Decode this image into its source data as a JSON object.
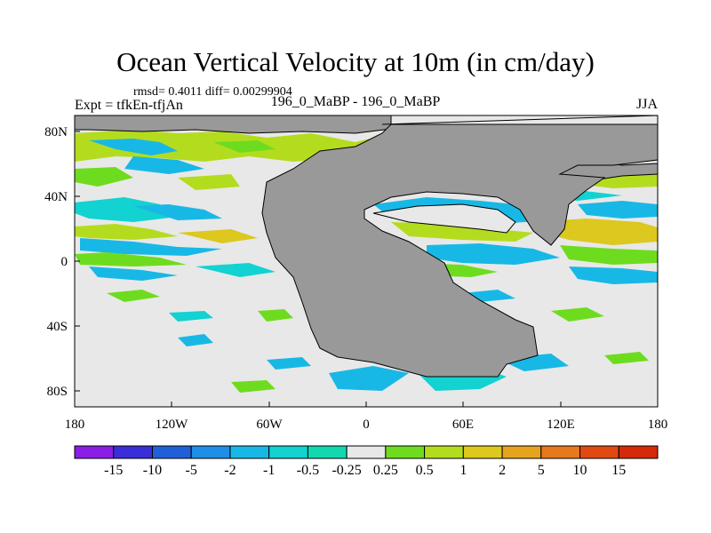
{
  "title": "Ocean Vertical Velocity at 10m (in cm/day)",
  "stats": "rmsd= 0.4011 diff= 0.00299904",
  "left_label": "Expt = tfkEn-tfjAn",
  "center_label": "196_0_MaBP - 196_0_MaBP",
  "right_label": "JJA",
  "lat_ticks": [
    "80N",
    "40N",
    "0",
    "40S",
    "80S"
  ],
  "lon_ticks": [
    "180",
    "120W",
    "60W",
    "0",
    "60E",
    "120E",
    "180"
  ],
  "colorbar": {
    "labels": [
      "-15",
      "-10",
      "-5",
      "-2",
      "-1",
      "-0.5",
      "-0.25",
      "0.25",
      "0.5",
      "1",
      "2",
      "5",
      "10",
      "15"
    ],
    "colors": [
      "#8a1ee6",
      "#3a2ed8",
      "#1f5fd8",
      "#1e8ee6",
      "#18b8e6",
      "#12d2d2",
      "#12d8b0",
      "#e8e8e8",
      "#6edc1e",
      "#b4dc1e",
      "#dcc81e",
      "#e6a41e",
      "#e6781e",
      "#e04a12",
      "#d42a0a"
    ]
  },
  "colors": {
    "land": "#999999",
    "neutral": "#e8e8e8"
  }
}
